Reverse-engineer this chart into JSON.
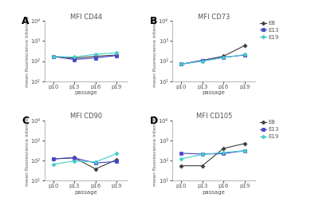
{
  "panels": [
    {
      "label": "A",
      "title": "MFI CD44",
      "data": {
        "E8": [
          170,
          140,
          175,
          200
        ],
        "E13": [
          170,
          120,
          145,
          190
        ],
        "E19": [
          170,
          160,
          220,
          260
        ]
      }
    },
    {
      "label": "B",
      "title": "MFI CD73",
      "data": {
        "E8": [
          70,
          110,
          175,
          600
        ],
        "E13": [
          70,
          108,
          155,
          200
        ],
        "E19": [
          70,
          100,
          150,
          210
        ]
      }
    },
    {
      "label": "C",
      "title": "MFI CD90",
      "data": {
        "E8": [
          120,
          140,
          38,
          110
        ],
        "E13": [
          120,
          135,
          75,
          90
        ],
        "E19": [
          65,
          95,
          85,
          220
        ]
      }
    },
    {
      "label": "D",
      "title": "MFI CD105",
      "data": {
        "E8": [
          55,
          55,
          400,
          700
        ],
        "E13": [
          230,
          210,
          220,
          310
        ],
        "E19": [
          120,
          200,
          250,
          310
        ]
      }
    }
  ],
  "xticklabels": [
    "p10",
    "p13",
    "p16",
    "p19"
  ],
  "xlabel": "passage",
  "ylabel": "mean fluorescence intensity",
  "colors": {
    "E8": "#3d3d3d",
    "E13": "#4444cc",
    "E19": "#44cccc"
  },
  "markers": {
    "E8": "D",
    "E13": "s",
    "E19": "D"
  },
  "ylim_log": [
    10,
    10000
  ],
  "yticks": [
    10,
    100,
    1000,
    10000
  ],
  "yticklabels": [
    "10$^1$",
    "10$^2$",
    "10$^3$",
    "10$^4$"
  ],
  "background_color": "#ffffff"
}
